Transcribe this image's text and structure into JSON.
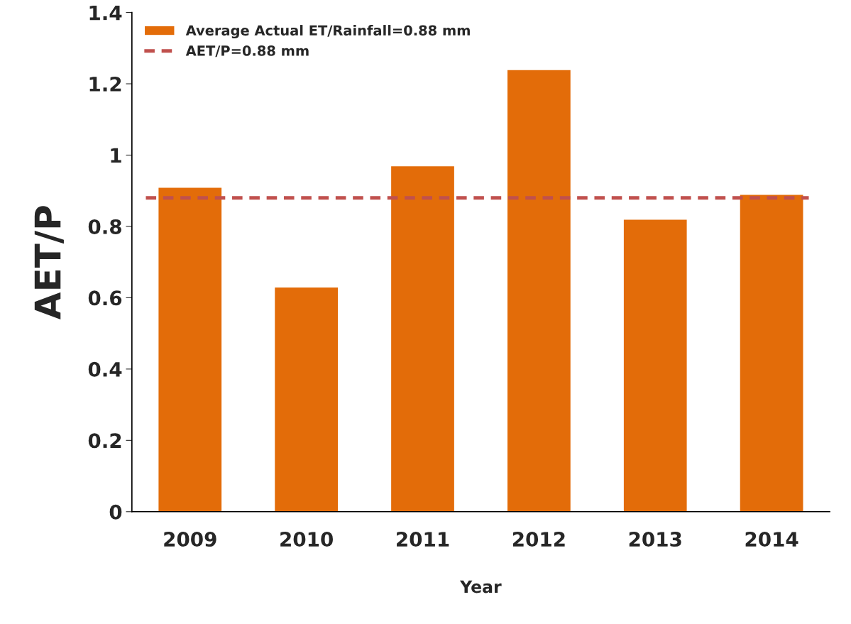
{
  "chart_data": {
    "type": "bar",
    "xlabel": "Year",
    "ylabel": "AET/P",
    "categories": [
      "2009",
      "2010",
      "2011",
      "2012",
      "2013",
      "2014"
    ],
    "series": [
      {
        "name": "Average Actual ET/Rainfall=0.88 mm",
        "color": "#e36c09",
        "values": [
          0.91,
          0.63,
          0.97,
          1.24,
          0.82,
          0.89
        ]
      }
    ],
    "ref_lines": [
      {
        "axis": "y",
        "value": 0.88,
        "label": "AET/P=0.88 mm",
        "color": "#c0504d",
        "line_style": "dashed"
      }
    ],
    "ylim": [
      0,
      1.4
    ],
    "yticks": [
      0,
      0.2,
      0.4,
      0.6,
      0.8,
      1,
      1.2,
      1.4
    ],
    "grid": false,
    "legend": "top left"
  }
}
